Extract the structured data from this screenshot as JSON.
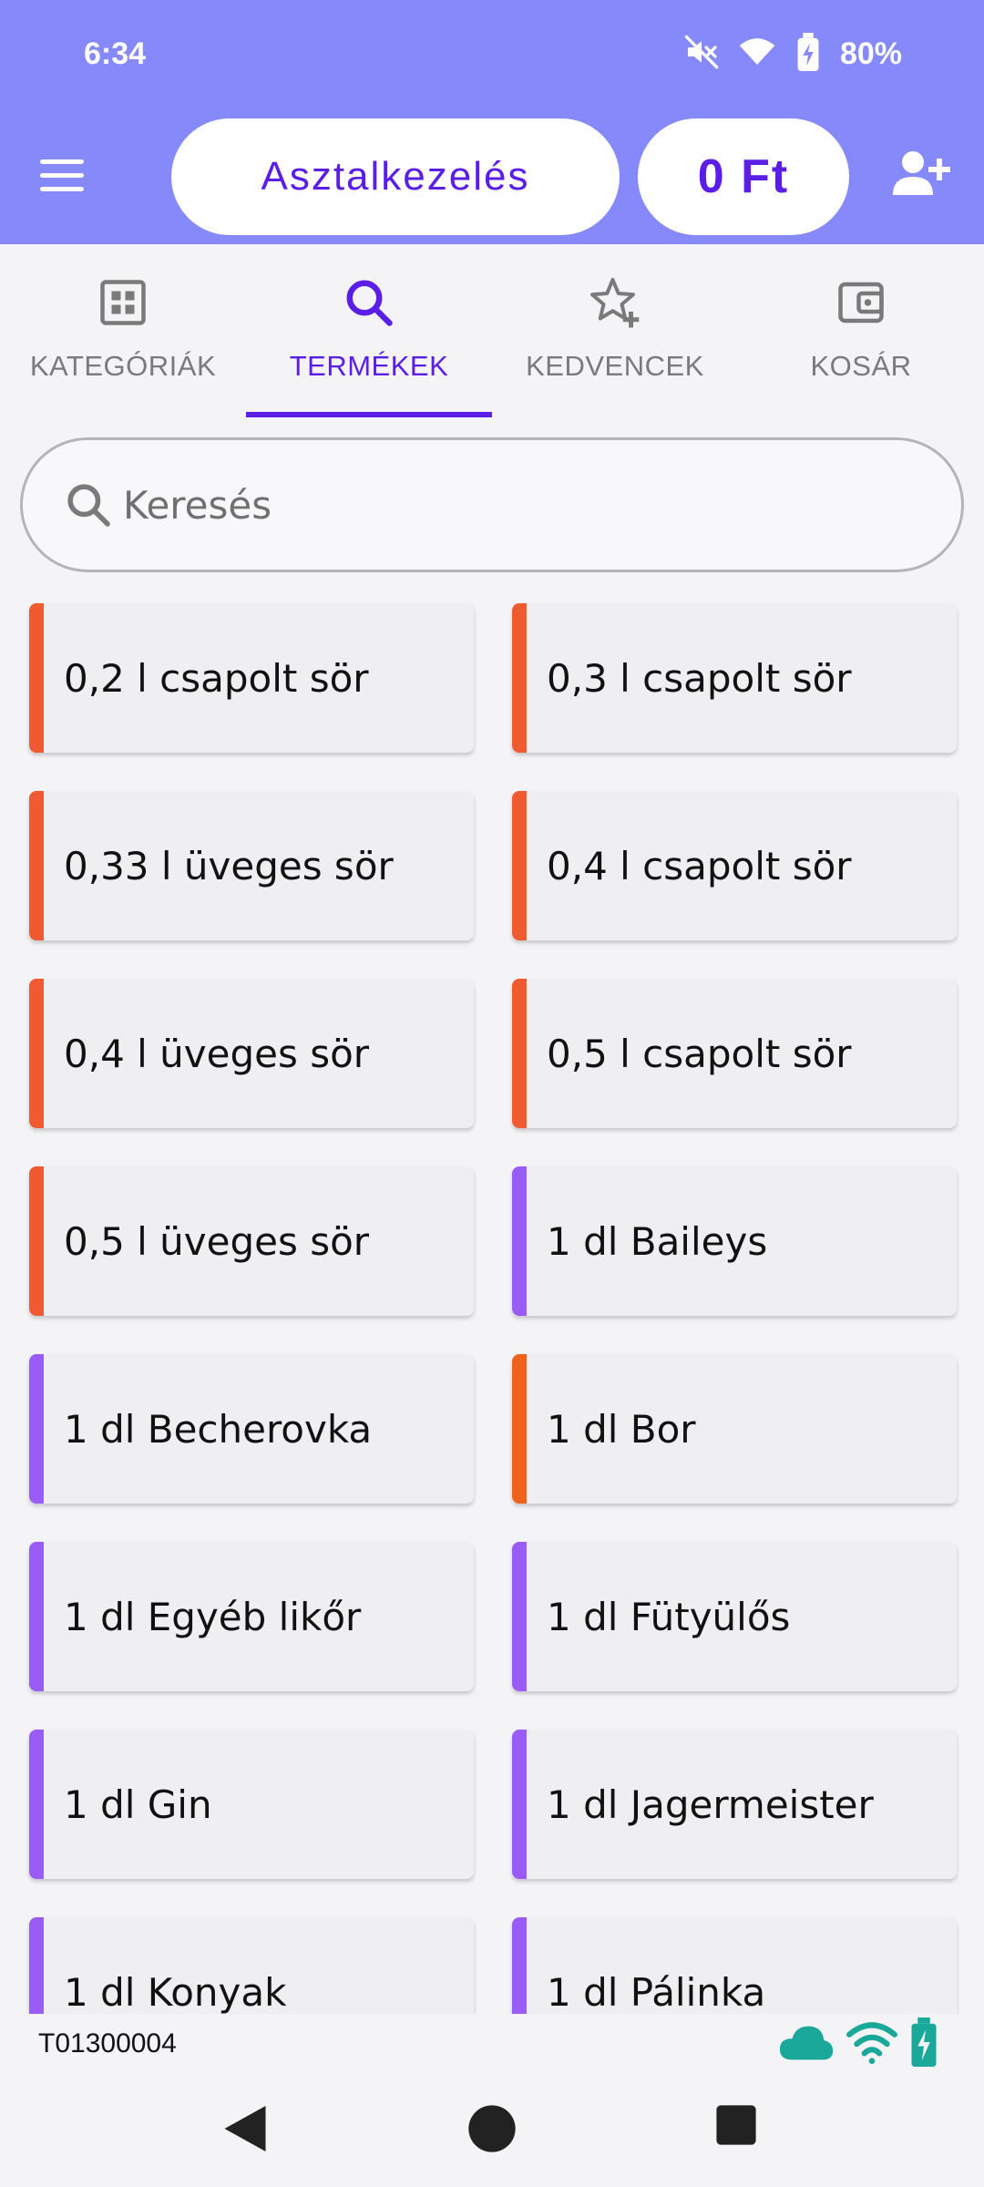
{
  "status_bar": {
    "time": "6:34",
    "battery": "80%",
    "icons": [
      "mute-icon",
      "wifi-icon",
      "battery-icon"
    ]
  },
  "header": {
    "title": "Asztalkezelés",
    "total": "0 Ft",
    "menu_icon": "hamburger-menu-icon",
    "add_user_icon": "add-user-icon",
    "background_color": "#8589fa",
    "accent_color": "#5a1ee6"
  },
  "tabs": [
    {
      "label": "KATEGÓRIÁK",
      "icon": "grid-icon",
      "active": false
    },
    {
      "label": "TERMÉKEK",
      "icon": "search-icon",
      "active": true
    },
    {
      "label": "KEDVENCEK",
      "icon": "star-plus-icon",
      "active": false
    },
    {
      "label": "KOSÁR",
      "icon": "wallet-icon",
      "active": false
    }
  ],
  "search": {
    "placeholder": "Keresés",
    "value": ""
  },
  "products": [
    {
      "name": "0,2 l csapolt sör",
      "color": "#ef5a30"
    },
    {
      "name": "0,3 l csapolt sör",
      "color": "#ef5a30"
    },
    {
      "name": "0,33 l üveges sör",
      "color": "#ef5a30"
    },
    {
      "name": "0,4 l csapolt sör",
      "color": "#ef5a30"
    },
    {
      "name": "0,4 l üveges sör",
      "color": "#ef5a30"
    },
    {
      "name": "0,5 l csapolt sör",
      "color": "#ef5a30"
    },
    {
      "name": "0,5 l üveges sör",
      "color": "#ef5a30"
    },
    {
      "name": "1 dl Baileys",
      "color": "#9a5cf7"
    },
    {
      "name": "1 dl Becherovka",
      "color": "#9a5cf7"
    },
    {
      "name": "1 dl Bor",
      "color": "#f0621c"
    },
    {
      "name": "1 dl Egyéb likőr",
      "color": "#9a5cf7"
    },
    {
      "name": "1 dl Fütyülős",
      "color": "#9a5cf7"
    },
    {
      "name": "1 dl Gin",
      "color": "#9a5cf7"
    },
    {
      "name": "1 dl Jagermeister",
      "color": "#9a5cf7"
    },
    {
      "name": "1 dl Konyak",
      "color": "#9a5cf7"
    },
    {
      "name": "1 dl Pálinka",
      "color": "#9a5cf7"
    }
  ],
  "footer": {
    "terminal_id": "T01300004",
    "icons": [
      "cloud-icon",
      "wifi-icon",
      "battery-charging-icon"
    ],
    "icon_color": "#1aa89a"
  },
  "navbar": {
    "icons": [
      "back-icon",
      "home-icon",
      "recents-icon"
    ]
  }
}
